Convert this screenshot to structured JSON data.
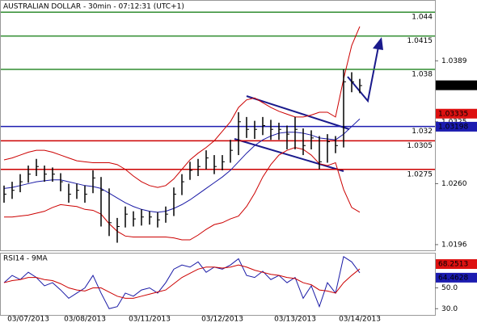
{
  "chart_data": [
    {
      "type": "ohlc",
      "title": "AUSTRALIAN DOLLAR - 30min - 07:12:31 (UTC+1)",
      "categories": [
        null,
        null,
        null,
        "03/07/2013",
        null,
        null,
        null,
        null,
        null,
        null,
        "03/08/2013",
        null,
        null,
        null,
        null,
        null,
        null,
        null,
        "03/11/2013",
        null,
        null,
        null,
        null,
        null,
        null,
        null,
        null,
        "03/12/2013",
        null,
        null,
        null,
        null,
        null,
        null,
        null,
        null,
        "03/13/2013",
        null,
        null,
        null,
        null,
        null,
        null,
        null,
        "03/14/2013"
      ],
      "close": [
        1.0249,
        1.0253,
        1.0262,
        1.027,
        1.0278,
        1.027,
        1.027,
        1.0262,
        1.0249,
        1.0253,
        1.0249,
        1.0266,
        1.0253,
        1.0219,
        1.0215,
        1.0228,
        1.0223,
        1.0225,
        1.0225,
        1.0222,
        1.0228,
        1.0249,
        1.0262,
        1.0274,
        1.0278,
        1.0287,
        1.0278,
        1.0283,
        1.0295,
        1.0325,
        1.0317,
        1.0317,
        1.0321,
        1.0317,
        1.0317,
        1.0312,
        1.0317,
        1.03,
        1.0308,
        1.0283,
        1.0304,
        1.03,
        1.0367,
        1.0367,
        1.0363
      ],
      "high": [
        1.0258,
        1.0262,
        1.027,
        1.0279,
        1.0286,
        1.0279,
        1.0277,
        1.0271,
        1.026,
        1.026,
        1.0258,
        1.0274,
        1.0267,
        1.0255,
        1.0224,
        1.0236,
        1.0231,
        1.0233,
        1.0231,
        1.023,
        1.0236,
        1.0256,
        1.027,
        1.0283,
        1.0286,
        1.0295,
        1.029,
        1.029,
        1.0306,
        1.0335,
        1.033,
        1.0326,
        1.033,
        1.0327,
        1.0324,
        1.0321,
        1.033,
        1.0318,
        1.0316,
        1.031,
        1.0312,
        1.031,
        1.038,
        1.0377,
        1.037
      ],
      "low": [
        1.024,
        1.0244,
        1.0251,
        1.0261,
        1.0268,
        1.0262,
        1.0262,
        1.0252,
        1.024,
        1.0244,
        1.024,
        1.025,
        1.0215,
        1.0205,
        1.0198,
        1.0214,
        1.0215,
        1.0216,
        1.0217,
        1.0214,
        1.0219,
        1.0226,
        1.0248,
        1.0264,
        1.0268,
        1.0275,
        1.027,
        1.0274,
        1.0282,
        1.029,
        1.0308,
        1.0307,
        1.0311,
        1.0306,
        1.0306,
        1.0296,
        1.0296,
        1.029,
        1.0296,
        1.0275,
        1.0282,
        1.0292,
        1.0298,
        1.0356,
        1.0355
      ],
      "bar_color": "#000000",
      "bands": {
        "ma": [
          1.0255,
          1.0256,
          1.0258,
          1.026,
          1.0262,
          1.0263,
          1.0264,
          1.0264,
          1.0262,
          1.026,
          1.0258,
          1.0257,
          1.0255,
          1.025,
          1.0245,
          1.024,
          1.0236,
          1.0233,
          1.0231,
          1.023,
          1.0231,
          1.0234,
          1.0238,
          1.0243,
          1.0249,
          1.0255,
          1.0261,
          1.0267,
          1.0274,
          1.0283,
          1.0292,
          1.03,
          1.0306,
          1.031,
          1.0313,
          1.0314,
          1.0314,
          1.0313,
          1.0311,
          1.0308,
          1.0307,
          1.0306,
          1.0312,
          1.032,
          1.0328
        ],
        "upper": [
          1.0285,
          1.0287,
          1.029,
          1.0293,
          1.0295,
          1.0295,
          1.0293,
          1.029,
          1.0287,
          1.0284,
          1.0283,
          1.0282,
          1.0282,
          1.0282,
          1.028,
          1.0275,
          1.0268,
          1.0262,
          1.0258,
          1.0256,
          1.0258,
          1.0265,
          1.0275,
          1.0285,
          1.0292,
          1.0298,
          1.0305,
          1.0315,
          1.0325,
          1.034,
          1.0348,
          1.035,
          1.0345,
          1.034,
          1.0336,
          1.0333,
          1.033,
          1.033,
          1.0332,
          1.0335,
          1.0335,
          1.033,
          1.037,
          1.0405,
          1.0425
        ],
        "lower": [
          1.0225,
          1.0225,
          1.0226,
          1.0227,
          1.0229,
          1.0231,
          1.0235,
          1.0238,
          1.0237,
          1.0236,
          1.0233,
          1.0232,
          1.0228,
          1.0218,
          1.021,
          1.0205,
          1.0204,
          1.0204,
          1.0204,
          1.0204,
          1.0204,
          1.0203,
          1.0201,
          1.0201,
          1.0206,
          1.0212,
          1.0217,
          1.0219,
          1.0223,
          1.0226,
          1.0236,
          1.025,
          1.0267,
          1.028,
          1.029,
          1.0295,
          1.0298,
          1.0296,
          1.029,
          1.0281,
          1.0279,
          1.0282,
          1.0254,
          1.0235,
          1.023
        ],
        "ma_color": "#1a1aa6",
        "band_color": "#cc0000"
      },
      "levels": [
        {
          "value": 1.044,
          "color": "#2e8b2e"
        },
        {
          "value": 1.0415,
          "color": "#2e8b2e"
        },
        {
          "value": 1.038,
          "color": "#2e8b2e"
        },
        {
          "value": 1.032,
          "color": "#1c1cb0"
        },
        {
          "value": 1.0305,
          "color": "#cc0000"
        },
        {
          "value": 1.0275,
          "color": "#cc0000"
        }
      ],
      "markers": [
        {
          "value": 1.03633,
          "color": "#000000",
          "text_color": "#ffffff"
        },
        {
          "value": 1.03335,
          "color": "#dd1111",
          "text_color": "#000000"
        },
        {
          "value": 1.03198,
          "color": "#1c1cb0",
          "text_color": "#ffffff"
        }
      ],
      "ylim": [
        1.019,
        1.0452
      ],
      "yticks": [
        1.0389,
        1.0325,
        {
          "value": 1.026,
          "label": "1.0260"
        },
        1.0196
      ]
    },
    {
      "type": "line",
      "title": "RSI14 - 9MA",
      "series": [
        {
          "color": "#1a1aa6",
          "values": [
            55,
            62,
            58,
            65,
            60,
            52,
            55,
            48,
            40,
            45,
            50,
            62,
            45,
            30,
            32,
            45,
            42,
            48,
            50,
            45,
            55,
            68,
            72,
            70,
            75,
            65,
            70,
            68,
            72,
            78,
            62,
            60,
            66,
            58,
            62,
            55,
            60,
            40,
            52,
            32,
            55,
            45,
            80,
            75,
            64.4628
          ]
        },
        {
          "color": "#cc0000",
          "values": [
            55,
            57,
            58,
            60,
            60,
            58,
            57,
            54,
            50,
            48,
            47,
            50,
            50,
            46,
            42,
            40,
            40,
            42,
            44,
            46,
            48,
            54,
            60,
            64,
            68,
            70,
            70,
            69,
            70,
            72,
            70,
            67,
            65,
            63,
            62,
            60,
            59,
            55,
            53,
            48,
            47,
            45,
            55,
            62,
            68.2513
          ]
        }
      ],
      "markers": [
        {
          "value": 68.2513,
          "color": "#dd1111",
          "text_color": "#000000"
        },
        {
          "value": 64.4628,
          "color": "#1c1cb0",
          "text_color": "#ffffff"
        }
      ],
      "ylim": [
        24,
        83
      ],
      "yticks": [
        {
          "value": 50,
          "label": "50.0"
        },
        {
          "value": 30,
          "label": "30.0"
        }
      ]
    }
  ]
}
